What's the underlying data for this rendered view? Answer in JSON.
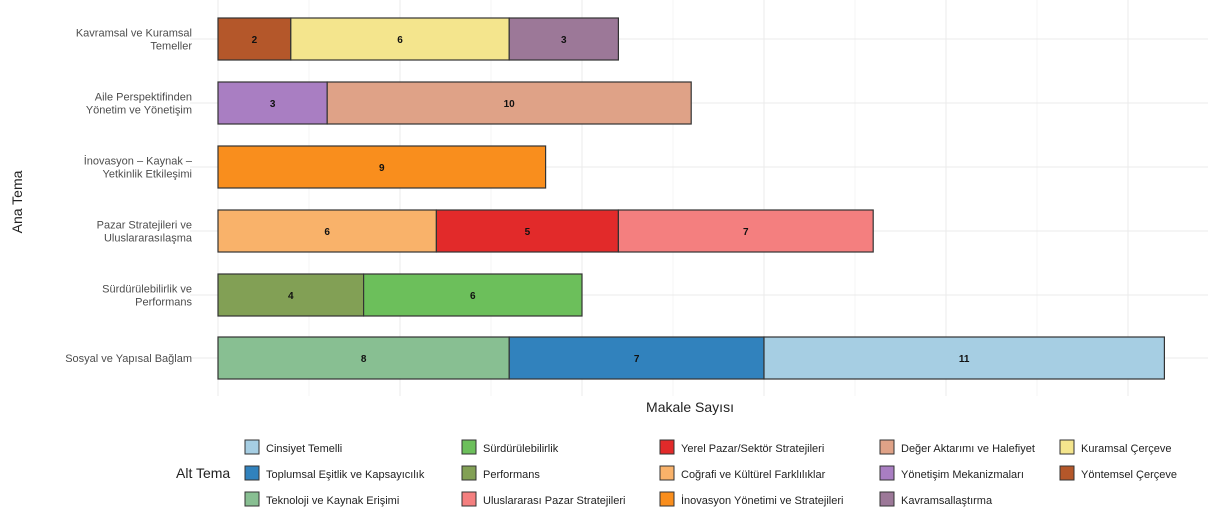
{
  "chart_data": {
    "type": "bar",
    "orientation": "horizontal",
    "stacked": true,
    "xlabel": "Makale Sayısı",
    "ylabel": "Ana Tema",
    "xlim": [
      0,
      26.5
    ],
    "grid": true,
    "legend_title": "Alt Tema",
    "legend_position": "bottom",
    "categories": [
      {
        "lines": [
          "Kavramsal ve Kuramsal",
          "Temeller"
        ]
      },
      {
        "lines": [
          "Aile Perspektifinden",
          "Yönetim ve Yönetişim"
        ]
      },
      {
        "lines": [
          "İnovasyon – Kaynak –",
          "Yetkinlik Etkileşimi"
        ]
      },
      {
        "lines": [
          "Pazar Stratejileri ve",
          "Uluslararasılaşma"
        ]
      },
      {
        "lines": [
          "Sürdürülebilirlik ve",
          "Performans"
        ]
      },
      {
        "lines": [
          "Sosyal ve Yapısal Bağlam"
        ]
      }
    ],
    "bars": [
      {
        "segments": [
          {
            "sub": "Yöntemsel Çerçeve",
            "value": 2
          },
          {
            "sub": "Kuramsal Çerçeve",
            "value": 6
          },
          {
            "sub": "Kavramsallaştırma",
            "value": 3
          }
        ]
      },
      {
        "segments": [
          {
            "sub": "Yönetişim Mekanizmaları",
            "value": 3
          },
          {
            "sub": "Değer Aktarımı ve Halefiyet",
            "value": 10
          }
        ]
      },
      {
        "segments": [
          {
            "sub": "İnovasyon Yönetimi ve Stratejileri",
            "value": 9
          }
        ]
      },
      {
        "segments": [
          {
            "sub": "Coğrafi ve Kültürel Farklılıklar",
            "value": 6
          },
          {
            "sub": "Yerel Pazar/Sektör Stratejileri",
            "value": 5
          },
          {
            "sub": "Uluslararası Pazar Stratejileri",
            "value": 7
          }
        ]
      },
      {
        "segments": [
          {
            "sub": "Performans",
            "value": 4
          },
          {
            "sub": "Sürdürülebilirlik",
            "value": 6
          }
        ]
      },
      {
        "segments": [
          {
            "sub": "Teknoloji ve Kaynak Erişimi",
            "value": 8
          },
          {
            "sub": "Toplumsal Eşitlik ve Kapsayıcılık",
            "value": 7
          },
          {
            "sub": "Cinsiyet Temelli",
            "value": 11
          }
        ]
      }
    ],
    "legend": [
      {
        "label": "Cinsiyet Temelli",
        "color": "#a6cee3"
      },
      {
        "label": "Toplumsal Eşitlik ve Kapsayıcılık",
        "color": "#3182bd"
      },
      {
        "label": "Teknoloji ve Kaynak Erişimi",
        "color": "#88bf92"
      },
      {
        "label": "Sürdürülebilirlik",
        "color": "#6cbf5b"
      },
      {
        "label": "Performans",
        "color": "#82a055"
      },
      {
        "label": "Uluslararası Pazar Stratejileri",
        "color": "#f47f7f"
      },
      {
        "label": "Yerel Pazar/Sektör Stratejileri",
        "color": "#e22a2a"
      },
      {
        "label": "Coğrafi ve Kültürel Farklılıklar",
        "color": "#f9b26a"
      },
      {
        "label": "İnovasyon Yönetimi ve Stratejileri",
        "color": "#f98e1d"
      },
      {
        "label": "Değer Aktarımı ve Halefiyet",
        "color": "#dfa287"
      },
      {
        "label": "Yönetişim Mekanizmaları",
        "color": "#a97ec2"
      },
      {
        "label": "Kavramsallaştırma",
        "color": "#9c7898"
      },
      {
        "label": "Kuramsal Çerçeve",
        "color": "#f4e58d"
      },
      {
        "label": "Yöntemsel Çerçeve",
        "color": "#b4572a"
      }
    ]
  }
}
